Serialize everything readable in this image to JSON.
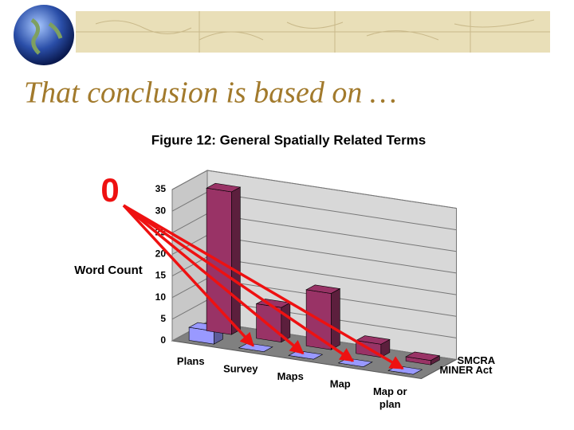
{
  "slide_title": "That conclusion is based on …",
  "annotation": "0",
  "chart_data": {
    "type": "bar3d",
    "title": "Figure 12:  General Spatially Related Terms",
    "y_label": "Word Count",
    "categories": [
      "Plans",
      "Survey",
      "Maps",
      "Map",
      "Map or plan"
    ],
    "series": [
      {
        "name": "SMCRA",
        "color": "#993366",
        "values": [
          33,
          8,
          13,
          3,
          1
        ]
      },
      {
        "name": "MINER Act",
        "color": "#9999ff",
        "values": [
          3,
          0,
          0,
          0,
          0
        ]
      }
    ],
    "ylim": [
      0,
      35
    ],
    "yticks": [
      0,
      5,
      10,
      15,
      20,
      25,
      30,
      35
    ],
    "grid": true
  }
}
